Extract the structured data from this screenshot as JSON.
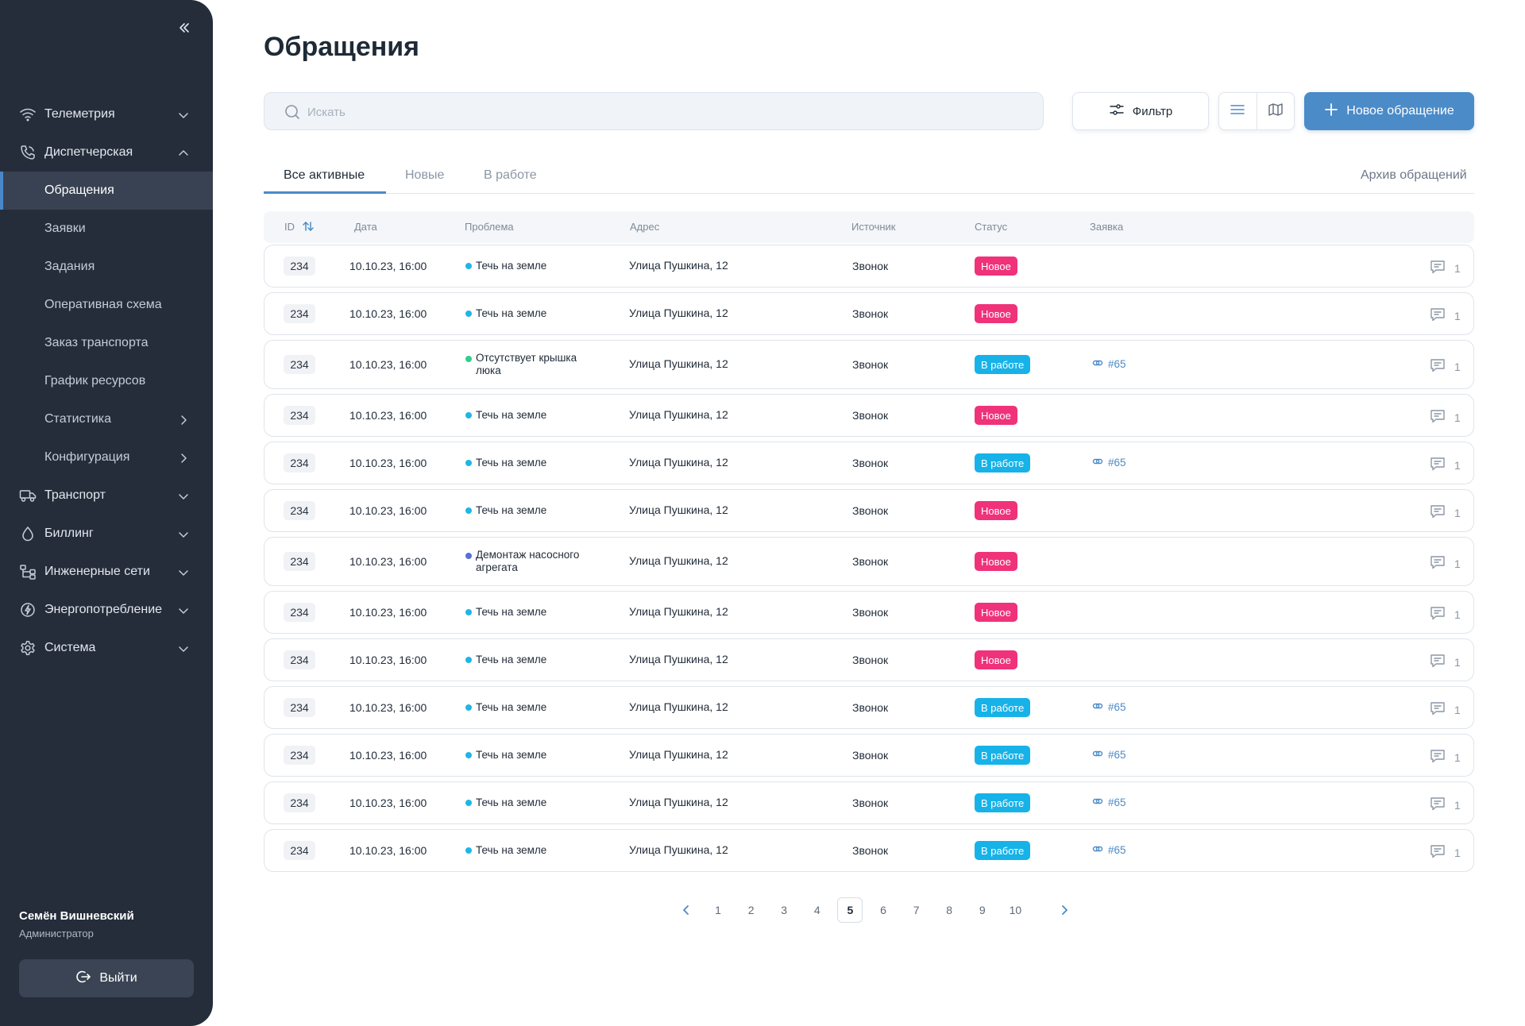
{
  "sidebar": {
    "nav": [
      {
        "label": "Телеметрия",
        "icon": "wifi-icon",
        "chevron": "down"
      },
      {
        "label": "Диспетчерская",
        "icon": "phone-icon",
        "chevron": "up"
      },
      {
        "label": "Обращения",
        "sub": true,
        "active": true
      },
      {
        "label": "Заявки",
        "sub": true
      },
      {
        "label": "Задания",
        "sub": true
      },
      {
        "label": "Оперативная схема",
        "sub": true
      },
      {
        "label": "Заказ транспорта",
        "sub": true
      },
      {
        "label": "График ресурсов",
        "sub": true
      },
      {
        "label": "Статистика",
        "sub": true,
        "chevron": "right"
      },
      {
        "label": "Конфигурация",
        "sub": true,
        "chevron": "right"
      },
      {
        "label": "Транспорт",
        "icon": "truck-icon",
        "chevron": "down"
      },
      {
        "label": "Биллинг",
        "icon": "drop-icon",
        "chevron": "down"
      },
      {
        "label": "Инженерные сети",
        "icon": "network-icon",
        "chevron": "down"
      },
      {
        "label": "Энергопотребление",
        "icon": "energy-icon",
        "chevron": "down"
      },
      {
        "label": "Система",
        "icon": "gear-icon",
        "chevron": "down"
      }
    ],
    "user": {
      "name": "Семён Вишневский",
      "role": "Администратор"
    },
    "logout_label": "Выйти"
  },
  "page": {
    "title": "Обращения",
    "search_placeholder": "Искать",
    "filter_label": "Фильтр",
    "new_button_label": "Новое обращение"
  },
  "tabs": {
    "all": "Все активные",
    "new": "Новые",
    "in_work": "В работе",
    "archive": "Архив обращений"
  },
  "table": {
    "columns": {
      "id": "ID",
      "date": "Дата",
      "problem": "Проблема",
      "address": "Адрес",
      "source": "Источник",
      "status": "Статус",
      "order": "Заявка"
    },
    "rows": [
      {
        "id": "234",
        "date": "10.10.23, 16:00",
        "problem": "Течь на земле",
        "dot": "#1fb6e6",
        "address": "Улица Пушкина, 12",
        "source": "Звонок",
        "status": "Новое",
        "status_color": "#f0327a",
        "order": "",
        "comments": "1"
      },
      {
        "id": "234",
        "date": "10.10.23, 16:00",
        "problem": "Течь на земле",
        "dot": "#1fb6e6",
        "address": "Улица Пушкина, 12",
        "source": "Звонок",
        "status": "Новое",
        "status_color": "#f0327a",
        "order": "",
        "comments": "1"
      },
      {
        "id": "234",
        "date": "10.10.23, 16:00",
        "problem": "Отсутствует крышка люка",
        "dot": "#2fcf8e",
        "address": "Улица Пушкина, 12",
        "source": "Звонок",
        "status": "В работе",
        "status_color": "#17b2e8",
        "order": "#65",
        "comments": "1"
      },
      {
        "id": "234",
        "date": "10.10.23, 16:00",
        "problem": "Течь на земле",
        "dot": "#1fb6e6",
        "address": "Улица Пушкина, 12",
        "source": "Звонок",
        "status": "Новое",
        "status_color": "#f0327a",
        "order": "",
        "comments": "1"
      },
      {
        "id": "234",
        "date": "10.10.23, 16:00",
        "problem": "Течь на земле",
        "dot": "#1fb6e6",
        "address": "Улица Пушкина, 12",
        "source": "Звонок",
        "status": "В работе",
        "status_color": "#17b2e8",
        "order": "#65",
        "comments": "1"
      },
      {
        "id": "234",
        "date": "10.10.23, 16:00",
        "problem": "Течь на земле",
        "dot": "#1fb6e6",
        "address": "Улица Пушкина, 12",
        "source": "Звонок",
        "status": "Новое",
        "status_color": "#f0327a",
        "order": "",
        "comments": "1"
      },
      {
        "id": "234",
        "date": "10.10.23, 16:00",
        "problem": "Демонтаж насосного агрегата",
        "dot": "#5b6fd6",
        "address": "Улица Пушкина, 12",
        "source": "Звонок",
        "status": "Новое",
        "status_color": "#f0327a",
        "order": "",
        "comments": "1"
      },
      {
        "id": "234",
        "date": "10.10.23, 16:00",
        "problem": "Течь на земле",
        "dot": "#1fb6e6",
        "address": "Улица Пушкина, 12",
        "source": "Звонок",
        "status": "Новое",
        "status_color": "#f0327a",
        "order": "",
        "comments": "1"
      },
      {
        "id": "234",
        "date": "10.10.23, 16:00",
        "problem": "Течь на земле",
        "dot": "#1fb6e6",
        "address": "Улица Пушкина, 12",
        "source": "Звонок",
        "status": "Новое",
        "status_color": "#f0327a",
        "order": "",
        "comments": "1"
      },
      {
        "id": "234",
        "date": "10.10.23, 16:00",
        "problem": "Течь на земле",
        "dot": "#1fb6e6",
        "address": "Улица Пушкина, 12",
        "source": "Звонок",
        "status": "В работе",
        "status_color": "#17b2e8",
        "order": "#65",
        "comments": "1"
      },
      {
        "id": "234",
        "date": "10.10.23, 16:00",
        "problem": "Течь на земле",
        "dot": "#1fb6e6",
        "address": "Улица Пушкина, 12",
        "source": "Звонок",
        "status": "В работе",
        "status_color": "#17b2e8",
        "order": "#65",
        "comments": "1"
      },
      {
        "id": "234",
        "date": "10.10.23, 16:00",
        "problem": "Течь на земле",
        "dot": "#1fb6e6",
        "address": "Улица Пушкина, 12",
        "source": "Звонок",
        "status": "В работе",
        "status_color": "#17b2e8",
        "order": "#65",
        "comments": "1"
      },
      {
        "id": "234",
        "date": "10.10.23, 16:00",
        "problem": "Течь на земле",
        "dot": "#1fb6e6",
        "address": "Улица Пушкина, 12",
        "source": "Звонок",
        "status": "В работе",
        "status_color": "#17b2e8",
        "order": "#65",
        "comments": "1"
      }
    ]
  },
  "pagination": {
    "pages": [
      "1",
      "2",
      "3",
      "4",
      "5",
      "6",
      "7",
      "8",
      "9",
      "10"
    ],
    "current": "5"
  },
  "colors": {
    "accent": "#4b8bc8",
    "status_new": "#f0327a",
    "status_in_work": "#17b2e8",
    "sidebar_bg": "#252d3b"
  }
}
